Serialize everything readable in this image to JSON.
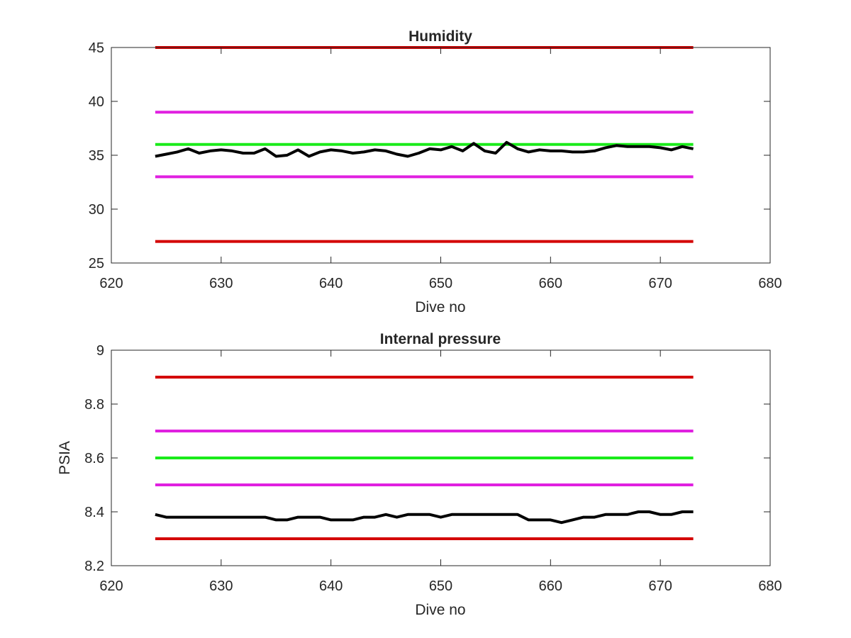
{
  "chart_data": [
    {
      "type": "line",
      "title": "Humidity",
      "xlabel": "Dive no",
      "ylabel": "",
      "xlim": [
        620,
        680
      ],
      "ylim": [
        25,
        45
      ],
      "xticks": [
        620,
        630,
        640,
        650,
        660,
        670,
        680
      ],
      "yticks": [
        25,
        30,
        35,
        40,
        45
      ],
      "grid": false,
      "legend": "none",
      "series": [
        {
          "x": [
            624,
            673
          ],
          "values": [
            45,
            45
          ],
          "color": "#d40000"
        },
        {
          "x": [
            624,
            673
          ],
          "values": [
            39,
            39
          ],
          "color": "#e020e0"
        },
        {
          "x": [
            624,
            673
          ],
          "values": [
            36,
            36
          ],
          "color": "#1aeb1a"
        },
        {
          "x": [
            624,
            625,
            626,
            627,
            628,
            629,
            630,
            631,
            632,
            633,
            634,
            635,
            636,
            637,
            638,
            639,
            640,
            641,
            642,
            643,
            644,
            645,
            646,
            647,
            648,
            649,
            650,
            651,
            652,
            653,
            654,
            655,
            656,
            657,
            658,
            659,
            660,
            661,
            662,
            663,
            664,
            665,
            666,
            667,
            668,
            669,
            670,
            671,
            672,
            673
          ],
          "values": [
            34.9,
            35.1,
            35.3,
            35.6,
            35.2,
            35.4,
            35.5,
            35.4,
            35.2,
            35.2,
            35.6,
            34.9,
            35.0,
            35.5,
            34.9,
            35.3,
            35.5,
            35.4,
            35.2,
            35.3,
            35.5,
            35.4,
            35.1,
            34.9,
            35.2,
            35.6,
            35.5,
            35.8,
            35.4,
            36.1,
            35.4,
            35.2,
            36.2,
            35.6,
            35.3,
            35.5,
            35.4,
            35.4,
            35.3,
            35.3,
            35.4,
            35.7,
            35.9,
            35.8,
            35.8,
            35.8,
            35.7,
            35.5,
            35.8,
            35.6
          ],
          "color": "#000000"
        },
        {
          "x": [
            624,
            673
          ],
          "values": [
            33,
            33
          ],
          "color": "#e020e0"
        },
        {
          "x": [
            624,
            673
          ],
          "values": [
            27,
            27
          ],
          "color": "#d40000"
        }
      ]
    },
    {
      "type": "line",
      "title": "Internal pressure",
      "xlabel": "Dive no",
      "ylabel": "PSIA",
      "xlim": [
        620,
        680
      ],
      "ylim": [
        8.2,
        9
      ],
      "xticks": [
        620,
        630,
        640,
        650,
        660,
        670,
        680
      ],
      "yticks": [
        8.2,
        8.4,
        8.6,
        8.8,
        9
      ],
      "ytick_labels": [
        "8.2",
        "8.4",
        "8.6",
        "8.8",
        "9"
      ],
      "grid": false,
      "legend": "none",
      "series": [
        {
          "x": [
            624,
            673
          ],
          "values": [
            8.9,
            8.9
          ],
          "color": "#d40000"
        },
        {
          "x": [
            624,
            673
          ],
          "values": [
            8.7,
            8.7
          ],
          "color": "#e020e0"
        },
        {
          "x": [
            624,
            673
          ],
          "values": [
            8.6,
            8.6
          ],
          "color": "#1aeb1a"
        },
        {
          "x": [
            624,
            673
          ],
          "values": [
            8.5,
            8.5
          ],
          "color": "#e020e0"
        },
        {
          "x": [
            624,
            625,
            626,
            627,
            628,
            629,
            630,
            631,
            632,
            633,
            634,
            635,
            636,
            637,
            638,
            639,
            640,
            641,
            642,
            643,
            644,
            645,
            646,
            647,
            648,
            649,
            650,
            651,
            652,
            653,
            654,
            655,
            656,
            657,
            658,
            659,
            660,
            661,
            662,
            663,
            664,
            665,
            666,
            667,
            668,
            669,
            670,
            671,
            672,
            673
          ],
          "values": [
            8.39,
            8.38,
            8.38,
            8.38,
            8.38,
            8.38,
            8.38,
            8.38,
            8.38,
            8.38,
            8.38,
            8.37,
            8.37,
            8.38,
            8.38,
            8.38,
            8.37,
            8.37,
            8.37,
            8.38,
            8.38,
            8.39,
            8.38,
            8.39,
            8.39,
            8.39,
            8.38,
            8.39,
            8.39,
            8.39,
            8.39,
            8.39,
            8.39,
            8.39,
            8.37,
            8.37,
            8.37,
            8.36,
            8.37,
            8.38,
            8.38,
            8.39,
            8.39,
            8.39,
            8.4,
            8.4,
            8.39,
            8.39,
            8.4,
            8.4
          ],
          "color": "#000000"
        },
        {
          "x": [
            624,
            673
          ],
          "values": [
            8.3,
            8.3
          ],
          "color": "#d40000"
        }
      ]
    }
  ]
}
